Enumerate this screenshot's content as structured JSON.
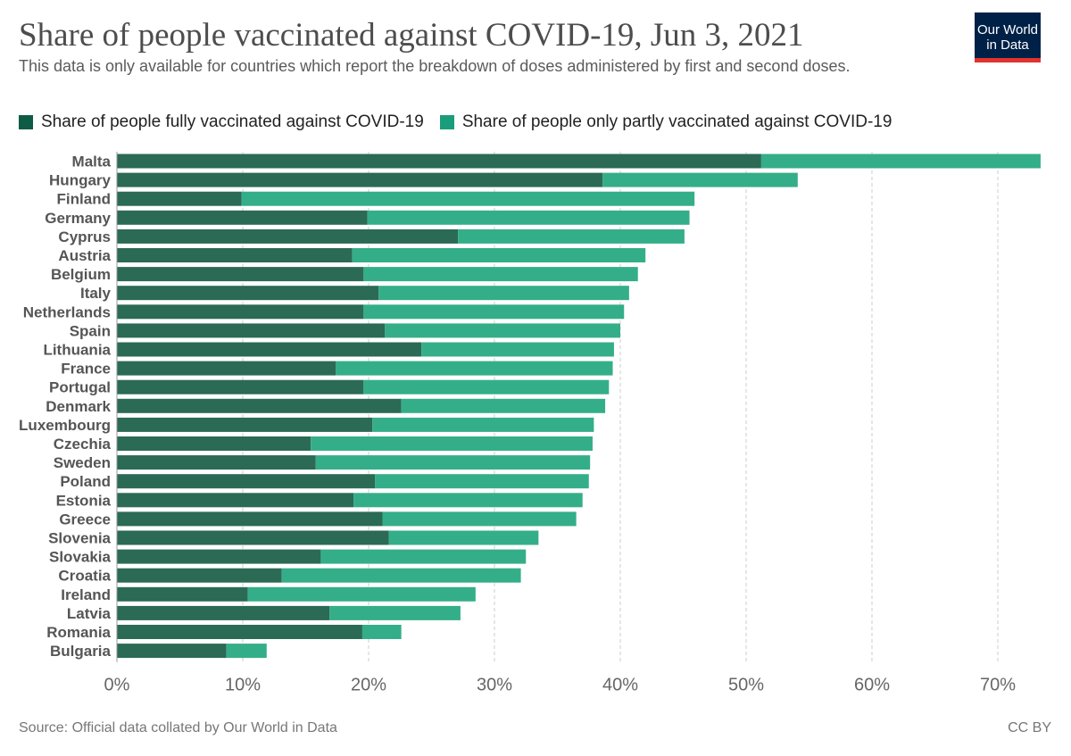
{
  "header": {
    "title": "Share of people vaccinated against COVID-19, Jun 3, 2021",
    "subtitle": "This data is only available for countries which report the breakdown of doses administered by first and second doses.",
    "logo_line1": "Our World",
    "logo_line2": "in Data"
  },
  "legend": {
    "items": [
      {
        "label": "Share of people fully vaccinated against COVID-19",
        "color": "#0e5c45"
      },
      {
        "label": "Share of people only partly vaccinated against COVID-19",
        "color": "#1a9d7a"
      }
    ]
  },
  "footer": {
    "source": "Source: Official data collated by Our World in Data",
    "license": "CC BY"
  },
  "colors": {
    "fully": "#2b6a55",
    "partly": "#34ae88",
    "grid": "#cccccc",
    "label": "#555555",
    "tick": "#666666"
  },
  "chart_data": {
    "type": "bar",
    "orientation": "horizontal",
    "stacked": true,
    "categories": [
      "Malta",
      "Hungary",
      "Finland",
      "Germany",
      "Cyprus",
      "Austria",
      "Belgium",
      "Italy",
      "Netherlands",
      "Spain",
      "Lithuania",
      "France",
      "Portugal",
      "Denmark",
      "Luxembourg",
      "Czechia",
      "Sweden",
      "Poland",
      "Estonia",
      "Greece",
      "Slovenia",
      "Slovakia",
      "Croatia",
      "Ireland",
      "Latvia",
      "Romania",
      "Bulgaria"
    ],
    "series": [
      {
        "name": "Share of people fully vaccinated against COVID-19",
        "values": [
          51.2,
          38.6,
          9.9,
          19.9,
          27.1,
          18.7,
          19.6,
          20.8,
          19.6,
          21.3,
          24.2,
          17.4,
          19.6,
          22.6,
          20.3,
          15.4,
          15.8,
          20.5,
          18.8,
          21.1,
          21.6,
          16.2,
          13.1,
          10.4,
          16.9,
          19.5,
          8.7
        ]
      },
      {
        "name": "Share of people only partly vaccinated against COVID-19",
        "values": [
          22.2,
          15.5,
          36.0,
          25.6,
          18.0,
          23.3,
          21.8,
          19.9,
          20.7,
          18.7,
          15.3,
          22.0,
          19.5,
          16.2,
          17.6,
          22.4,
          21.8,
          17.0,
          18.2,
          15.4,
          11.9,
          16.3,
          19.0,
          18.1,
          10.4,
          3.1,
          3.2
        ]
      }
    ],
    "x_ticks": [
      "0%",
      "10%",
      "20%",
      "30%",
      "40%",
      "50%",
      "60%",
      "70%"
    ],
    "xlim": [
      0,
      74
    ],
    "x_unit": "%",
    "grid": "vertical dashed",
    "legend_position": "top-left"
  }
}
